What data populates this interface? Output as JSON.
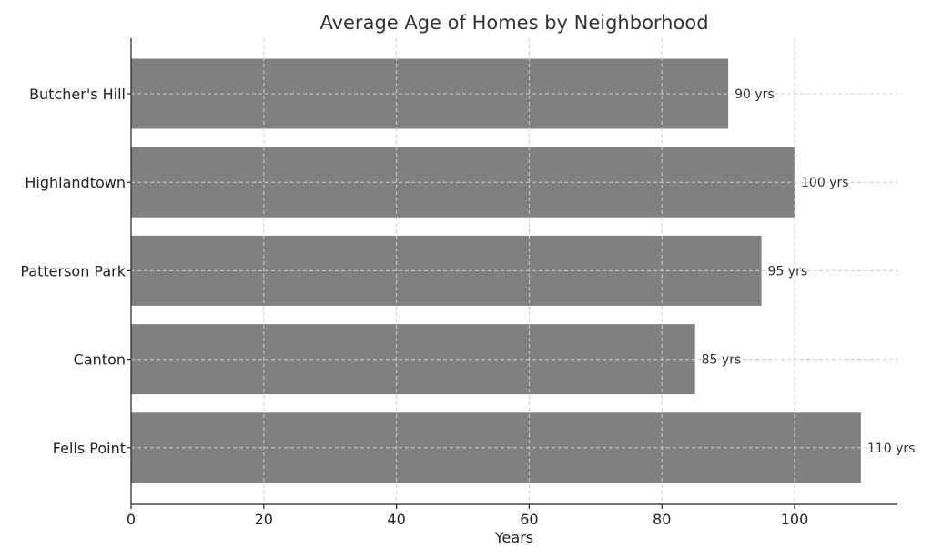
{
  "chart_data": {
    "type": "bar",
    "orientation": "horizontal",
    "title": "Average Age of Homes by Neighborhood",
    "xlabel": "Years",
    "ylabel": "",
    "categories": [
      "Butcher's Hill",
      "Highlandtown",
      "Patterson Park",
      "Canton",
      "Fells Point"
    ],
    "values": [
      90,
      100,
      95,
      85,
      110
    ],
    "data_labels": [
      "90 yrs",
      "100 yrs",
      "95 yrs",
      "85 yrs",
      "110 yrs"
    ],
    "xlim": [
      0,
      115.5
    ],
    "x_ticks": [
      0,
      20,
      40,
      60,
      80,
      100
    ],
    "grid": true,
    "legend": "none",
    "bar_color": "#808080"
  }
}
